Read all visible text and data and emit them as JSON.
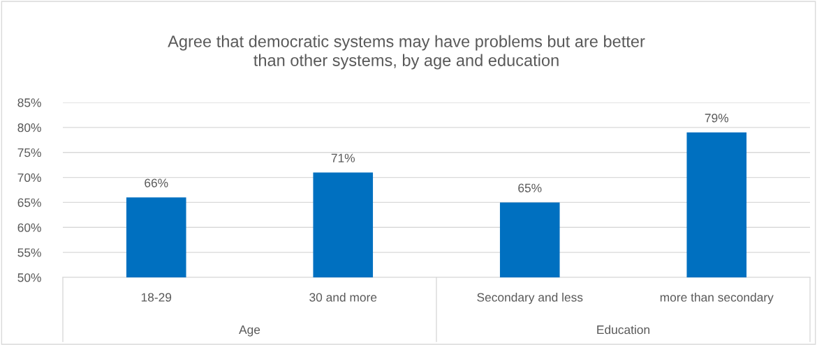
{
  "chart_data": {
    "type": "bar",
    "title": "Agree that democratic systems may have problems but are better than other systems, by age and education",
    "categories": [
      "18-29",
      "30 and more",
      "Secondary and less",
      "more than secondary"
    ],
    "values": [
      66,
      71,
      65,
      79
    ],
    "color": "#0070c0",
    "value_labels": [
      "66%",
      "71%",
      "65%",
      "79%"
    ],
    "ylim": [
      50,
      85
    ],
    "yticks": [
      {
        "value": 50,
        "label": "50%"
      },
      {
        "value": 55,
        "label": "55%"
      },
      {
        "value": 60,
        "label": "60%"
      },
      {
        "value": 65,
        "label": "65%"
      },
      {
        "value": 70,
        "label": "70%"
      },
      {
        "value": 75,
        "label": "75%"
      },
      {
        "value": 80,
        "label": "80%"
      },
      {
        "value": 85,
        "label": "85%"
      }
    ],
    "grid": "y",
    "annotations": [
      "Age",
      "Education"
    ]
  }
}
